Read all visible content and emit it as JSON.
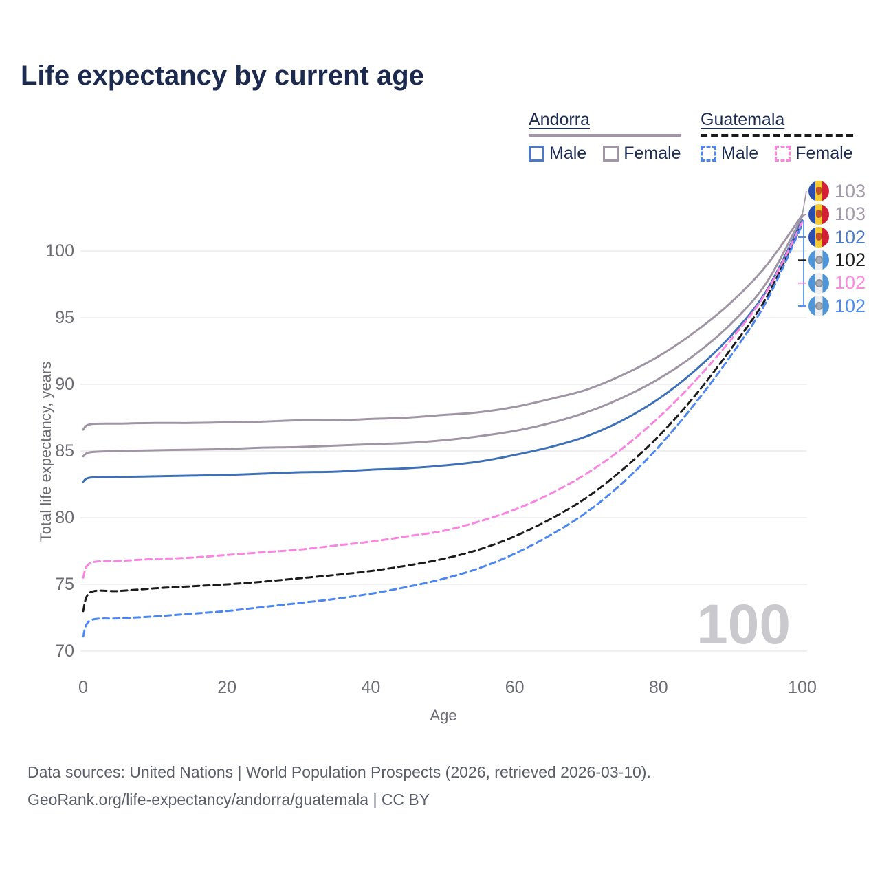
{
  "title": "Life expectancy by current age",
  "legend": {
    "groups": [
      {
        "country": "Andorra",
        "line_style": "solid",
        "line_color": "#a095a5",
        "items": [
          {
            "label": "Male",
            "box_color": "#4a7bc4",
            "dashed": false
          },
          {
            "label": "Female",
            "box_color": "#a095a5",
            "dashed": false
          }
        ]
      },
      {
        "country": "Guatemala",
        "line_style": "dashed",
        "line_color": "#1b1b1d",
        "items": [
          {
            "label": "Male",
            "box_color": "#4b87ef",
            "dashed": true
          },
          {
            "label": "Female",
            "box_color": "#f985e1",
            "dashed": true
          }
        ]
      }
    ]
  },
  "chart_data": {
    "type": "line",
    "title": "Life expectancy by current age",
    "xlabel": "Age",
    "ylabel": "Total life expectancy, years",
    "xticks": [
      0,
      20,
      40,
      60,
      80,
      100
    ],
    "yticks": [
      70,
      75,
      80,
      85,
      90,
      95,
      100
    ],
    "xlim": [
      0,
      100
    ],
    "ylim": [
      69,
      103.5
    ],
    "grid": "horizontal",
    "x": [
      0,
      1,
      5,
      10,
      15,
      20,
      25,
      30,
      35,
      40,
      45,
      50,
      55,
      60,
      65,
      70,
      75,
      80,
      85,
      90,
      95,
      100
    ],
    "series": [
      {
        "name": "Andorra Female",
        "color": "#a095a5",
        "dashed": false,
        "end_label": "103",
        "label_color": "#a39aab",
        "flag": "andorra",
        "values": [
          86.6,
          87.0,
          87.05,
          87.1,
          87.1,
          87.15,
          87.2,
          87.3,
          87.3,
          87.4,
          87.5,
          87.7,
          87.9,
          88.3,
          88.9,
          89.6,
          90.7,
          92.1,
          93.9,
          96.1,
          98.9,
          102.7
        ]
      },
      {
        "name": "Andorra Both sexes",
        "color": "#a095a5",
        "dashed": false,
        "end_label": "103",
        "label_color": "#a39aab",
        "flag": "andorra",
        "values": [
          84.6,
          84.9,
          85.0,
          85.05,
          85.1,
          85.15,
          85.25,
          85.3,
          85.4,
          85.5,
          85.6,
          85.8,
          86.1,
          86.5,
          87.1,
          87.9,
          89.0,
          90.4,
          92.2,
          94.5,
          97.6,
          102.6
        ]
      },
      {
        "name": "Andorra Male",
        "color": "#3e70b7",
        "dashed": false,
        "end_label": "102",
        "label_color": "#4e79c5",
        "flag": "andorra",
        "values": [
          82.7,
          83.0,
          83.05,
          83.1,
          83.15,
          83.2,
          83.3,
          83.4,
          83.45,
          83.6,
          83.7,
          83.9,
          84.2,
          84.7,
          85.3,
          86.1,
          87.3,
          88.9,
          91.0,
          93.6,
          97.0,
          102.3
        ]
      },
      {
        "name": "Guatemala Both sexes",
        "color": "#1b1b1d",
        "dashed": true,
        "end_label": "102",
        "label_color": "#1d1d1f",
        "flag": "guatemala",
        "values": [
          73.0,
          74.4,
          74.5,
          74.7,
          74.85,
          75.0,
          75.2,
          75.45,
          75.7,
          76.0,
          76.4,
          76.9,
          77.6,
          78.6,
          79.9,
          81.5,
          83.6,
          86.1,
          89.1,
          92.6,
          96.5,
          102.05
        ]
      },
      {
        "name": "Guatemala Female",
        "color": "#f985e1",
        "dashed": true,
        "end_label": "102",
        "label_color": "#fb8ae0",
        "flag": "guatemala",
        "values": [
          75.5,
          76.6,
          76.75,
          76.9,
          77.0,
          77.2,
          77.4,
          77.6,
          77.9,
          78.2,
          78.6,
          79.0,
          79.7,
          80.6,
          81.8,
          83.3,
          85.2,
          87.5,
          90.2,
          93.3,
          96.9,
          102.15
        ]
      },
      {
        "name": "Guatemala Male",
        "color": "#4b87ef",
        "dashed": true,
        "end_label": "102",
        "label_color": "#4d8af0",
        "flag": "guatemala",
        "values": [
          71.1,
          72.3,
          72.45,
          72.6,
          72.8,
          73.0,
          73.3,
          73.6,
          73.9,
          74.3,
          74.8,
          75.4,
          76.2,
          77.3,
          78.7,
          80.4,
          82.6,
          85.3,
          88.5,
          92.1,
          96.2,
          102.0
        ]
      }
    ],
    "callout_order": [
      0,
      1,
      2,
      3,
      4,
      5
    ]
  },
  "watermark": "100",
  "footer": {
    "line1": "Data sources: United Nations | World Population Prospects (2026, retrieved 2026-03-10).",
    "line2": "GeoRank.org/life-expectancy/andorra/guatemala | CC BY"
  }
}
